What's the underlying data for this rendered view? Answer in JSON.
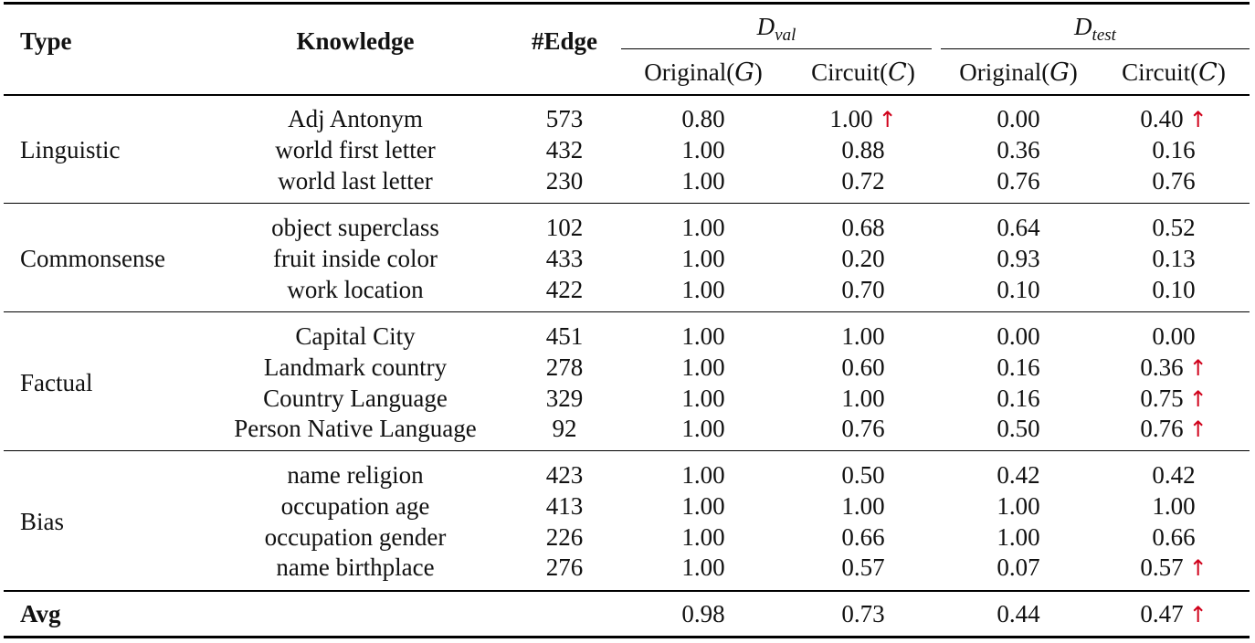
{
  "header": {
    "type": "Type",
    "knowledge": "Knowledge",
    "edge": "#Edge",
    "dval": {
      "main": "D",
      "sub": "val"
    },
    "dtest": {
      "main": "D",
      "sub": "test"
    },
    "original": "Original(",
    "original_sym": "G",
    "circuit": "Circuit(",
    "circuit_sym": "C",
    "close": ")"
  },
  "groups": [
    {
      "type": "Linguistic",
      "rows": [
        {
          "knowledge": "Adj Antonym",
          "edge": "573",
          "val_orig": "0.80",
          "val_circ": "1.00",
          "val_circ_up": true,
          "test_orig": "0.00",
          "test_circ": "0.40",
          "test_circ_up": true
        },
        {
          "knowledge": "world first letter",
          "edge": "432",
          "val_orig": "1.00",
          "val_circ": "0.88",
          "val_circ_up": false,
          "test_orig": "0.36",
          "test_circ": "0.16",
          "test_circ_up": false
        },
        {
          "knowledge": "world last letter",
          "edge": "230",
          "val_orig": "1.00",
          "val_circ": "0.72",
          "val_circ_up": false,
          "test_orig": "0.76",
          "test_circ": "0.76",
          "test_circ_up": false
        }
      ]
    },
    {
      "type": "Commonsense",
      "rows": [
        {
          "knowledge": "object superclass",
          "edge": "102",
          "val_orig": "1.00",
          "val_circ": "0.68",
          "val_circ_up": false,
          "test_orig": "0.64",
          "test_circ": "0.52",
          "test_circ_up": false
        },
        {
          "knowledge": "fruit inside color",
          "edge": "433",
          "val_orig": "1.00",
          "val_circ": "0.20",
          "val_circ_up": false,
          "test_orig": "0.93",
          "test_circ": "0.13",
          "test_circ_up": false
        },
        {
          "knowledge": "work location",
          "edge": "422",
          "val_orig": "1.00",
          "val_circ": "0.70",
          "val_circ_up": false,
          "test_orig": "0.10",
          "test_circ": "0.10",
          "test_circ_up": false
        }
      ]
    },
    {
      "type": "Factual",
      "rows": [
        {
          "knowledge": "Capital City",
          "edge": "451",
          "val_orig": "1.00",
          "val_circ": "1.00",
          "val_circ_up": false,
          "test_orig": "0.00",
          "test_circ": "0.00",
          "test_circ_up": false
        },
        {
          "knowledge": "Landmark country",
          "edge": "278",
          "val_orig": "1.00",
          "val_circ": "0.60",
          "val_circ_up": false,
          "test_orig": "0.16",
          "test_circ": "0.36",
          "test_circ_up": true
        },
        {
          "knowledge": "Country Language",
          "edge": "329",
          "val_orig": "1.00",
          "val_circ": "1.00",
          "val_circ_up": false,
          "test_orig": "0.16",
          "test_circ": "0.75",
          "test_circ_up": true
        },
        {
          "knowledge": "Person Native Language",
          "edge": "92",
          "val_orig": "1.00",
          "val_circ": "0.76",
          "val_circ_up": false,
          "test_orig": "0.50",
          "test_circ": "0.76",
          "test_circ_up": true
        }
      ]
    },
    {
      "type": "Bias",
      "rows": [
        {
          "knowledge": "name religion",
          "edge": "423",
          "val_orig": "1.00",
          "val_circ": "0.50",
          "val_circ_up": false,
          "test_orig": "0.42",
          "test_circ": "0.42",
          "test_circ_up": false
        },
        {
          "knowledge": "occupation age",
          "edge": "413",
          "val_orig": "1.00",
          "val_circ": "1.00",
          "val_circ_up": false,
          "test_orig": "1.00",
          "test_circ": "1.00",
          "test_circ_up": false
        },
        {
          "knowledge": "occupation gender",
          "edge": "226",
          "val_orig": "1.00",
          "val_circ": "0.66",
          "val_circ_up": false,
          "test_orig": "1.00",
          "test_circ": "0.66",
          "test_circ_up": false
        },
        {
          "knowledge": "name birthplace",
          "edge": "276",
          "val_orig": "1.00",
          "val_circ": "0.57",
          "val_circ_up": false,
          "test_orig": "0.07",
          "test_circ": "0.57",
          "test_circ_up": true
        }
      ]
    }
  ],
  "avg": {
    "label": "Avg",
    "val_orig": "0.98",
    "val_circ": "0.73",
    "val_circ_up": false,
    "test_orig": "0.44",
    "test_circ": "0.47",
    "test_circ_up": true
  },
  "arrow_glyph": "↑",
  "colors": {
    "arrow": "#d0021b",
    "text": "#111111",
    "rule": "#000000"
  }
}
